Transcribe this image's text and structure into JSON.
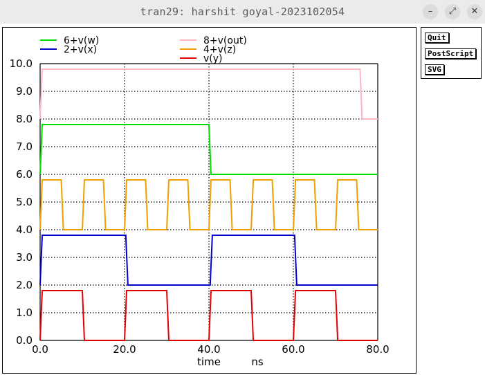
{
  "window": {
    "title": "tran29: harshit goyal-2023102054",
    "buttons": [
      {
        "name": "minimize-icon",
        "glyph": "–"
      },
      {
        "name": "maximize-icon",
        "glyph": "⤢"
      },
      {
        "name": "close-icon",
        "glyph": "✕"
      }
    ]
  },
  "side": {
    "quit": "Quit",
    "postscript": "PostScript",
    "svg": "SVG"
  },
  "chart_data": {
    "type": "line",
    "xlabel": "time",
    "xunit": "ns",
    "xlim": [
      0,
      80
    ],
    "ylim": [
      0,
      10
    ],
    "grid": true,
    "x_ticks": [
      "0.0",
      "20.0",
      "40.0",
      "60.0",
      "80.0"
    ],
    "y_ticks": [
      "0.0",
      "1.0",
      "2.0",
      "3.0",
      "4.0",
      "5.0",
      "6.0",
      "7.0",
      "8.0",
      "9.0",
      "10.0"
    ],
    "series": [
      {
        "name": "6+v(w)",
        "color": "#00dd00",
        "x": [
          0,
          0.5,
          40,
          40.5,
          80
        ],
        "y": [
          6.0,
          7.8,
          7.8,
          6.0,
          6.0
        ]
      },
      {
        "name": "8+v(out)",
        "color": "#ffb6c1",
        "x": [
          0,
          0.5,
          75.8,
          76.3,
          80
        ],
        "y": [
          8.0,
          9.8,
          9.8,
          8.0,
          8.0
        ]
      },
      {
        "name": "2+v(x)",
        "color": "#0000c8",
        "x": [
          0,
          0.5,
          20.3,
          20.8,
          40.3,
          40.8,
          60.3,
          60.8,
          80
        ],
        "y": [
          2.0,
          3.8,
          3.8,
          2.0,
          2.0,
          3.8,
          3.8,
          2.0,
          2.0
        ]
      },
      {
        "name": "4+v(z)",
        "color": "#f0a000",
        "x": [
          0,
          0.5,
          5,
          5.5,
          10,
          10.5,
          15,
          15.5,
          20,
          20.5,
          25,
          25.5,
          30,
          30.5,
          35,
          35.5,
          40,
          40.5,
          45,
          45.5,
          50,
          50.5,
          55,
          55.5,
          60,
          60.5,
          65,
          65.5,
          70,
          70.5,
          75,
          75.5,
          80
        ],
        "y": [
          4.0,
          5.8,
          5.8,
          4.0,
          4.0,
          5.8,
          5.8,
          4.0,
          4.0,
          5.8,
          5.8,
          4.0,
          4.0,
          5.8,
          5.8,
          4.0,
          4.0,
          5.8,
          5.8,
          4.0,
          4.0,
          5.8,
          5.8,
          4.0,
          4.0,
          5.8,
          5.8,
          4.0,
          4.0,
          5.8,
          5.8,
          4.0,
          4.0
        ]
      },
      {
        "name": "v(y)",
        "color": "#e00000",
        "x": [
          0,
          0.5,
          10,
          10.5,
          20,
          20.5,
          30,
          30.5,
          40,
          40.5,
          50,
          50.5,
          60,
          60.5,
          70,
          70.5,
          80
        ],
        "y": [
          0.0,
          1.8,
          1.8,
          0.0,
          0.0,
          1.8,
          1.8,
          0.0,
          0.0,
          1.8,
          1.8,
          0.0,
          0.0,
          1.8,
          1.8,
          0.0,
          0.0
        ]
      }
    ]
  }
}
